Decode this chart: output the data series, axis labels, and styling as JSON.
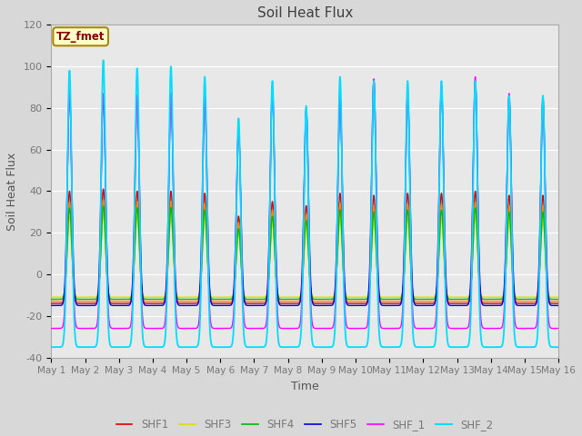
{
  "title": "Soil Heat Flux",
  "ylabel": "Soil Heat Flux",
  "xlabel": "Time",
  "xlim_start": 0,
  "xlim_end": 15,
  "ylim": [
    -40,
    120
  ],
  "yticks": [
    -40,
    -20,
    0,
    20,
    40,
    60,
    80,
    100,
    120
  ],
  "xtick_labels": [
    "May 1",
    "May 2",
    "May 3",
    "May 4",
    "May 5",
    "May 6",
    "May 7",
    "May 8",
    "May 9",
    "May 10",
    "May 11",
    "May 12",
    "May 13",
    "May 14",
    "May 15",
    "May 16"
  ],
  "series_colors": {
    "SHF1": "#dd0000",
    "SHF2": "#ff8800",
    "SHF3": "#dddd00",
    "SHF4": "#00bb00",
    "SHF5": "#0000dd",
    "SHF_1": "#ff00ff",
    "SHF_2": "#00ddff"
  },
  "annotation_text": "TZ_fmet",
  "annotation_bg": "#ffffcc",
  "annotation_border": "#aa8800",
  "background_color": "#d8d8d8",
  "plot_bg": "#e8e8e8",
  "grid_color": "#ffffff",
  "title_color": "#404040",
  "axis_label_color": "#555555",
  "tick_label_color": "#777777",
  "figsize": [
    6.4,
    4.8
  ],
  "dpi": 100
}
